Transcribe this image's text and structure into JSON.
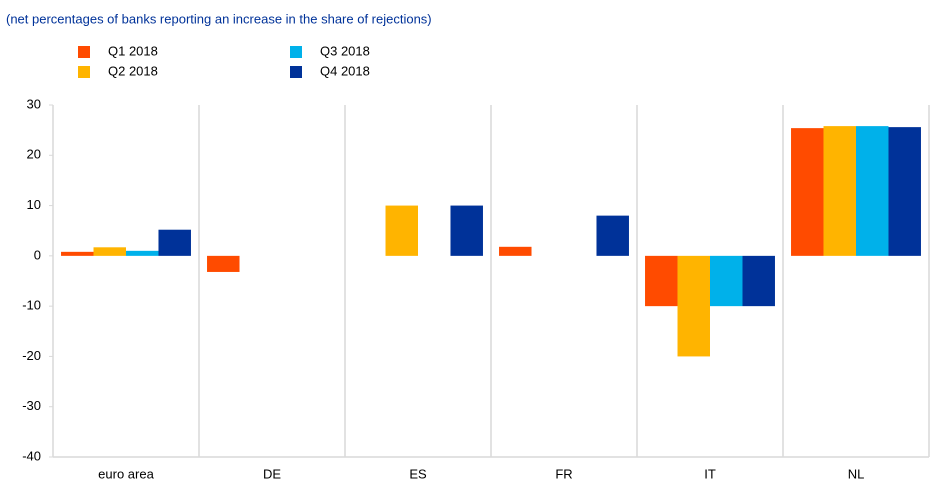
{
  "chart_data": {
    "type": "bar",
    "subtitle": "(net percentages of banks reporting an increase in the share of rejections)",
    "categories": [
      "euro area",
      "DE",
      "ES",
      "FR",
      "IT",
      "NL"
    ],
    "series": [
      {
        "name": "Q1 2018",
        "color": "#ff4b00",
        "values": [
          0.8,
          -3.2,
          0,
          1.8,
          -10,
          25.4
        ]
      },
      {
        "name": "Q2 2018",
        "color": "#ffb400",
        "values": [
          1.7,
          0,
          10,
          0,
          -20,
          25.8
        ]
      },
      {
        "name": "Q3 2018",
        "color": "#00b1ea",
        "values": [
          1.0,
          0,
          0,
          0,
          -10,
          25.8
        ]
      },
      {
        "name": "Q4 2018",
        "color": "#003299",
        "values": [
          5.2,
          0,
          10,
          8,
          -10,
          25.6
        ]
      }
    ],
    "ylim": [
      -40,
      30
    ],
    "yticks": [
      -40,
      -30,
      -20,
      -10,
      0,
      10,
      20,
      30
    ],
    "grid": false
  }
}
